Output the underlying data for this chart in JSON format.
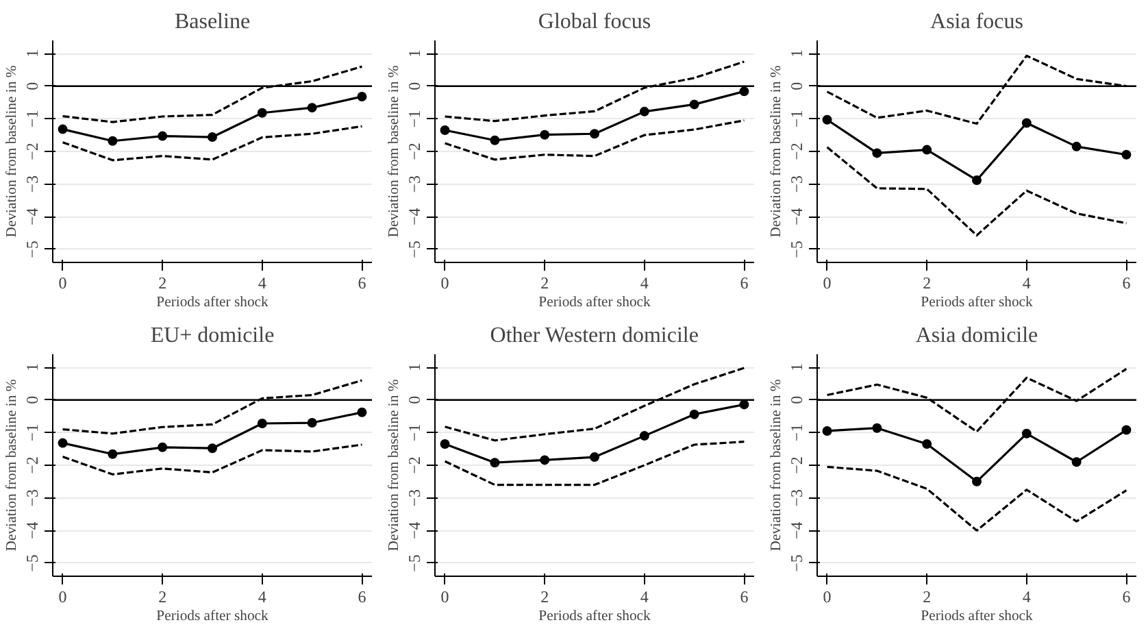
{
  "chart_data": [
    {
      "type": "line",
      "title": "Baseline",
      "xlabel": "Periods after shock",
      "ylabel": "Deviation from baseline in %",
      "x": [
        0,
        1,
        2,
        3,
        4,
        5,
        6
      ],
      "xlim": [
        -0.2,
        6.2
      ],
      "xticks": [
        0,
        2,
        4,
        6
      ],
      "ylim": [
        -5.4,
        1.4
      ],
      "yticks": [
        {
          "value": -5,
          "label": "−5"
        },
        {
          "value": -4,
          "label": "−4"
        },
        {
          "value": -3,
          "label": "−3"
        },
        {
          "value": -2,
          "label": "−2"
        },
        {
          "value": -1,
          "label": "−1"
        },
        0,
        1
      ],
      "grid": "y",
      "ref_lines": [
        {
          "axis": "y",
          "value": 0,
          "color": "#000000"
        }
      ],
      "series": [
        {
          "color": "#000000",
          "marker": "circle",
          "line_style": "solid",
          "values": [
            -1.32,
            -1.68,
            -1.53,
            -1.56,
            -0.82,
            -0.66,
            -0.32
          ]
        },
        {
          "color": "#000000",
          "marker": "none",
          "line_style": "dashed",
          "values": [
            -0.92,
            -1.1,
            -0.93,
            -0.88,
            -0.05,
            0.15,
            0.6
          ]
        },
        {
          "color": "#000000",
          "marker": "none",
          "line_style": "dashed",
          "values": [
            -1.72,
            -2.27,
            -2.14,
            -2.25,
            -1.57,
            -1.46,
            -1.23
          ]
        }
      ]
    },
    {
      "type": "line",
      "title": "Global focus",
      "xlabel": "Periods after shock",
      "ylabel": "Deviation from baseline in %",
      "x": [
        0,
        1,
        2,
        3,
        4,
        5,
        6
      ],
      "xlim": [
        -0.2,
        6.2
      ],
      "xticks": [
        0,
        2,
        4,
        6
      ],
      "ylim": [
        -5.4,
        1.4
      ],
      "yticks": [
        {
          "value": -5,
          "label": "−5"
        },
        {
          "value": -4,
          "label": "−4"
        },
        {
          "value": -3,
          "label": "−3"
        },
        {
          "value": -2,
          "label": "−2"
        },
        {
          "value": -1,
          "label": "−1"
        },
        0,
        1
      ],
      "grid": "y",
      "ref_lines": [
        {
          "axis": "y",
          "value": 0,
          "color": "#000000"
        }
      ],
      "series": [
        {
          "color": "#000000",
          "marker": "circle",
          "line_style": "solid",
          "values": [
            -1.35,
            -1.66,
            -1.49,
            -1.46,
            -0.78,
            -0.56,
            -0.16
          ]
        },
        {
          "color": "#000000",
          "marker": "none",
          "line_style": "dashed",
          "values": [
            -0.93,
            -1.07,
            -0.9,
            -0.77,
            -0.05,
            0.25,
            0.75
          ]
        },
        {
          "color": "#000000",
          "marker": "none",
          "line_style": "dashed",
          "values": [
            -1.75,
            -2.25,
            -2.1,
            -2.14,
            -1.5,
            -1.33,
            -1.05
          ]
        }
      ]
    },
    {
      "type": "line",
      "title": "Asia focus",
      "xlabel": "Periods after shock",
      "ylabel": "Deviation from baseline in %",
      "x": [
        0,
        1,
        2,
        3,
        4,
        5,
        6
      ],
      "xlim": [
        -0.2,
        6.2
      ],
      "xticks": [
        0,
        2,
        4,
        6
      ],
      "ylim": [
        -5.4,
        1.4
      ],
      "yticks": [
        {
          "value": -5,
          "label": "−5"
        },
        {
          "value": -4,
          "label": "−4"
        },
        {
          "value": -3,
          "label": "−3"
        },
        {
          "value": -2,
          "label": "−2"
        },
        {
          "value": -1,
          "label": "−1"
        },
        0,
        1
      ],
      "grid": "y",
      "ref_lines": [
        {
          "axis": "y",
          "value": 0,
          "color": "#000000"
        }
      ],
      "series": [
        {
          "color": "#000000",
          "marker": "circle",
          "line_style": "solid",
          "values": [
            -1.03,
            -2.05,
            -1.95,
            -2.88,
            -1.13,
            -1.85,
            -2.1
          ]
        },
        {
          "color": "#000000",
          "marker": "none",
          "line_style": "dashed",
          "values": [
            -0.17,
            -0.97,
            -0.75,
            -1.15,
            0.93,
            0.22,
            0.0
          ]
        },
        {
          "color": "#000000",
          "marker": "none",
          "line_style": "dashed",
          "values": [
            -1.87,
            -3.13,
            -3.15,
            -4.57,
            -3.2,
            -3.9,
            -4.2
          ]
        }
      ]
    },
    {
      "type": "line",
      "title": "EU+ domicile",
      "xlabel": "Periods after shock",
      "ylabel": "Deviation from baseline in %",
      "x": [
        0,
        1,
        2,
        3,
        4,
        5,
        6
      ],
      "xlim": [
        -0.2,
        6.2
      ],
      "xticks": [
        0,
        2,
        4,
        6
      ],
      "ylim": [
        -5.4,
        1.4
      ],
      "yticks": [
        {
          "value": -5,
          "label": "−5"
        },
        {
          "value": -4,
          "label": "−4"
        },
        {
          "value": -3,
          "label": "−3"
        },
        {
          "value": -2,
          "label": "−2"
        },
        {
          "value": -1,
          "label": "−1"
        },
        0,
        1
      ],
      "grid": "y",
      "ref_lines": [
        {
          "axis": "y",
          "value": 0,
          "color": "#000000"
        }
      ],
      "series": [
        {
          "color": "#000000",
          "marker": "circle",
          "line_style": "solid",
          "values": [
            -1.32,
            -1.66,
            -1.45,
            -1.48,
            -0.72,
            -0.7,
            -0.38
          ]
        },
        {
          "color": "#000000",
          "marker": "none",
          "line_style": "dashed",
          "values": [
            -0.9,
            -1.03,
            -0.83,
            -0.75,
            0.05,
            0.15,
            0.6
          ]
        },
        {
          "color": "#000000",
          "marker": "none",
          "line_style": "dashed",
          "values": [
            -1.74,
            -2.28,
            -2.1,
            -2.22,
            -1.54,
            -1.58,
            -1.37
          ]
        }
      ]
    },
    {
      "type": "line",
      "title": "Other Western domicile",
      "xlabel": "Periods after shock",
      "ylabel": "Deviation from baseline in %",
      "x": [
        0,
        1,
        2,
        3,
        4,
        5,
        6
      ],
      "xlim": [
        -0.2,
        6.2
      ],
      "xticks": [
        0,
        2,
        4,
        6
      ],
      "ylim": [
        -5.4,
        1.4
      ],
      "yticks": [
        {
          "value": -5,
          "label": "−5"
        },
        {
          "value": -4,
          "label": "−4"
        },
        {
          "value": -3,
          "label": "−3"
        },
        {
          "value": -2,
          "label": "−2"
        },
        {
          "value": -1,
          "label": "−1"
        },
        0,
        1
      ],
      "grid": "y",
      "ref_lines": [
        {
          "axis": "y",
          "value": 0,
          "color": "#000000"
        }
      ],
      "series": [
        {
          "color": "#000000",
          "marker": "circle",
          "line_style": "solid",
          "values": [
            -1.35,
            -1.92,
            -1.84,
            -1.75,
            -1.1,
            -0.44,
            -0.14
          ]
        },
        {
          "color": "#000000",
          "marker": "none",
          "line_style": "dashed",
          "values": [
            -0.82,
            -1.24,
            -1.05,
            -0.88,
            -0.18,
            0.48,
            0.98
          ]
        },
        {
          "color": "#000000",
          "marker": "none",
          "line_style": "dashed",
          "values": [
            -1.88,
            -2.6,
            -2.6,
            -2.6,
            -2.0,
            -1.37,
            -1.28
          ]
        }
      ]
    },
    {
      "type": "line",
      "title": "Asia domicile",
      "xlabel": "Periods after shock",
      "ylabel": "Deviation from baseline in %",
      "x": [
        0,
        1,
        2,
        3,
        4,
        5,
        6
      ],
      "xlim": [
        -0.2,
        6.2
      ],
      "xticks": [
        0,
        2,
        4,
        6
      ],
      "ylim": [
        -5.4,
        1.4
      ],
      "yticks": [
        {
          "value": -5,
          "label": "−5"
        },
        {
          "value": -4,
          "label": "−4"
        },
        {
          "value": -3,
          "label": "−3"
        },
        {
          "value": -2,
          "label": "−2"
        },
        {
          "value": -1,
          "label": "−1"
        },
        0,
        1
      ],
      "grid": "y",
      "ref_lines": [
        {
          "axis": "y",
          "value": 0,
          "color": "#000000"
        }
      ],
      "series": [
        {
          "color": "#000000",
          "marker": "circle",
          "line_style": "solid",
          "values": [
            -0.95,
            -0.86,
            -1.35,
            -2.5,
            -1.03,
            -1.9,
            -0.92
          ]
        },
        {
          "color": "#000000",
          "marker": "none",
          "line_style": "dashed",
          "values": [
            0.15,
            0.47,
            0.07,
            -0.97,
            0.68,
            -0.03,
            0.95
          ]
        },
        {
          "color": "#000000",
          "marker": "none",
          "line_style": "dashed",
          "values": [
            -2.05,
            -2.17,
            -2.72,
            -4.0,
            -2.75,
            -3.72,
            -2.77
          ]
        }
      ]
    }
  ]
}
